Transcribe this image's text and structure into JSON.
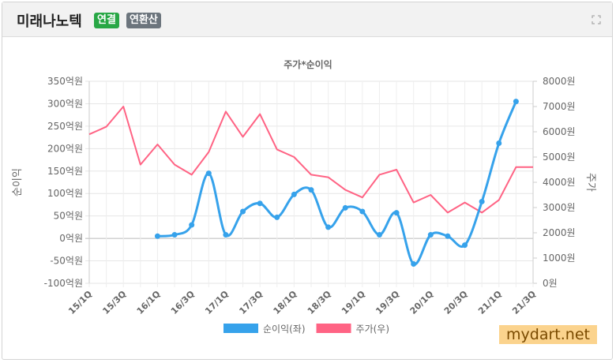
{
  "header": {
    "title": "미래나노텍",
    "badges": [
      "연결",
      "연환산"
    ]
  },
  "chart_data": {
    "type": "line",
    "title": "주가*순이익",
    "y_label": "순이익",
    "y2_label": "주가",
    "categories": [
      "15/1Q",
      null,
      "15/3Q",
      null,
      "16/1Q",
      null,
      "16/3Q",
      null,
      "17/1Q",
      null,
      "17/3Q",
      null,
      "18/1Q",
      null,
      "18/3Q",
      null,
      "19/1Q",
      null,
      "19/3Q",
      null,
      "20/1Q",
      null,
      "20/3Q",
      null,
      "21/1Q",
      null,
      "21/3Q"
    ],
    "series": [
      {
        "name": "순이익(좌)",
        "color": "#36a2eb",
        "axis": "y",
        "smooth": true,
        "points": true,
        "values": [
          null,
          null,
          null,
          null,
          5,
          8,
          30,
          145,
          8,
          60,
          78,
          47,
          98,
          108,
          25,
          68,
          60,
          8,
          57,
          -57,
          8,
          5,
          -15,
          82,
          212,
          305,
          null
        ]
      },
      {
        "name": "주가(우)",
        "color": "#ff6384",
        "axis": "y2",
        "smooth": false,
        "points": false,
        "values": [
          5900,
          6200,
          7000,
          4700,
          5500,
          4700,
          4300,
          5200,
          6800,
          5800,
          6700,
          5300,
          5000,
          4300,
          4200,
          3700,
          3400,
          4300,
          4500,
          3200,
          3500,
          2800,
          3200,
          2800,
          3300,
          4600,
          4600
        ]
      }
    ],
    "ylim": [
      -100,
      350
    ],
    "yticks": [
      {
        "value": -100,
        "label": "-100억원"
      },
      {
        "value": -50,
        "label": "-50억원"
      },
      {
        "value": 0,
        "label": "0억원"
      },
      {
        "value": 50,
        "label": "50억원"
      },
      {
        "value": 100,
        "label": "100억원"
      },
      {
        "value": 150,
        "label": "150억원"
      },
      {
        "value": 200,
        "label": "200억원"
      },
      {
        "value": 250,
        "label": "250억원"
      },
      {
        "value": 300,
        "label": "300억원"
      },
      {
        "value": 350,
        "label": "350억원"
      }
    ],
    "y2lim": [
      0,
      8000
    ],
    "y2ticks": [
      {
        "value": 0,
        "label": "0원"
      },
      {
        "value": 1000,
        "label": "1000원"
      },
      {
        "value": 2000,
        "label": "2000원"
      },
      {
        "value": 3000,
        "label": "3000원"
      },
      {
        "value": 4000,
        "label": "4000원"
      },
      {
        "value": 5000,
        "label": "5000원"
      },
      {
        "value": 6000,
        "label": "6000원"
      },
      {
        "value": 7000,
        "label": "7000원"
      },
      {
        "value": 8000,
        "label": "8000원"
      }
    ],
    "grid": true,
    "legend": "bottom"
  },
  "watermark": "mydart.net"
}
